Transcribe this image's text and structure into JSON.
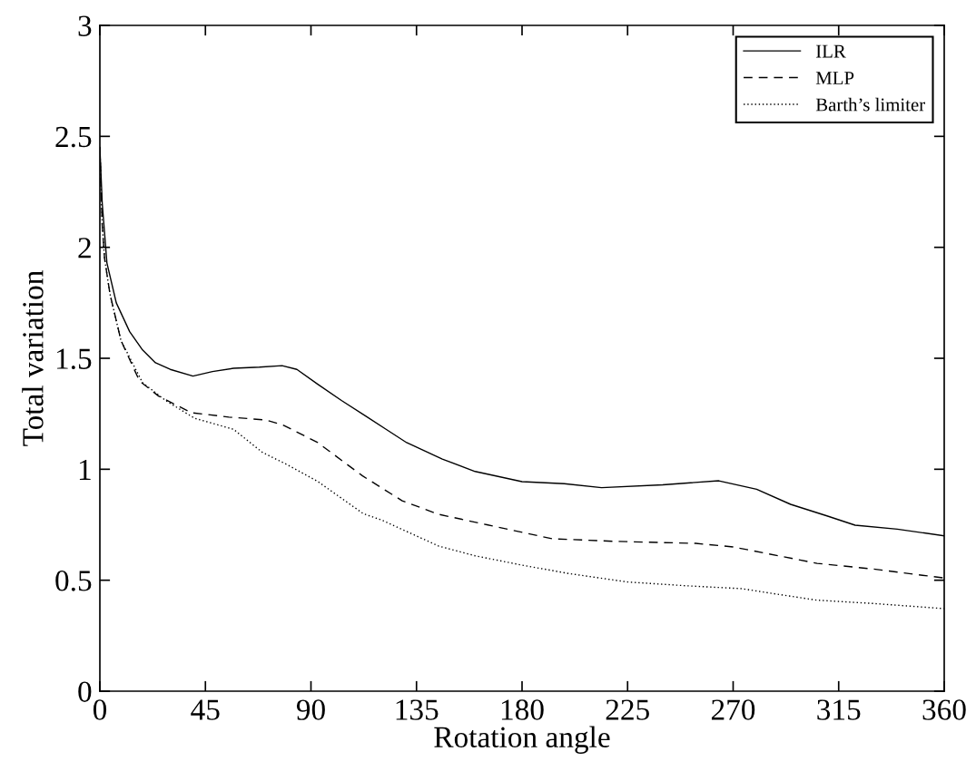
{
  "chart_data": {
    "type": "line",
    "xlabel": "Rotation angle",
    "ylabel": "Total variation",
    "xlim": [
      0,
      360
    ],
    "ylim": [
      0,
      3
    ],
    "xticks": [
      0,
      45,
      90,
      135,
      180,
      225,
      270,
      315,
      360
    ],
    "yticks": [
      0,
      0.5,
      1,
      1.5,
      2,
      2.5,
      3
    ],
    "grid": false,
    "legend": "top right",
    "marker": "none",
    "series": [
      {
        "name": "ILR",
        "color": "#000000",
        "line_style": "solid",
        "x": [
          0,
          1,
          3,
          7,
          12.7,
          18,
          23.7,
          30,
          39.7,
          48,
          57,
          68,
          77.7,
          84,
          92.9,
          103,
          113.6,
          122,
          130.8,
          146,
          160,
          180,
          198,
          213.9,
          240,
          263.9,
          280,
          294.5,
          310,
          322,
          340,
          360
        ],
        "values": [
          2.45,
          2.2,
          1.93,
          1.75,
          1.62,
          1.54,
          1.48,
          1.45,
          1.42,
          1.44,
          1.455,
          1.46,
          1.467,
          1.45,
          1.383,
          1.31,
          1.238,
          1.18,
          1.12,
          1.046,
          0.99,
          0.944,
          0.935,
          0.917,
          0.93,
          0.948,
          0.91,
          0.842,
          0.79,
          0.748,
          0.73,
          0.7
        ]
      },
      {
        "name": "MLP",
        "color": "#000000",
        "line_style": "dashed",
        "x": [
          0,
          1,
          2,
          4.3,
          9,
          16.9,
          25,
          39,
          55,
          70.8,
          78,
          92.9,
          112,
          128.9,
          144.4,
          165,
          192.8,
          220,
          254,
          270,
          305.8,
          330,
          360
        ],
        "values": [
          2.45,
          2.1,
          1.95,
          1.79,
          1.58,
          1.398,
          1.33,
          1.255,
          1.235,
          1.222,
          1.2,
          1.12,
          0.97,
          0.858,
          0.797,
          0.75,
          0.687,
          0.675,
          0.666,
          0.65,
          0.576,
          0.55,
          0.51
        ]
      },
      {
        "name": "Barth’s limiter",
        "color": "#000000",
        "line_style": "dotted",
        "x": [
          0,
          1,
          2,
          4.3,
          9,
          18.2,
          28,
          40.3,
          57,
          69.3,
          80,
          92.9,
          112.3,
          120.4,
          144.4,
          160,
          180,
          200,
          225,
          250,
          273.6,
          290,
          305.8,
          330,
          360
        ],
        "values": [
          2.45,
          2.1,
          1.95,
          1.79,
          1.58,
          1.39,
          1.31,
          1.23,
          1.18,
          1.076,
          1.02,
          0.945,
          0.8,
          0.77,
          0.654,
          0.61,
          0.568,
          0.53,
          0.492,
          0.475,
          0.462,
          0.435,
          0.41,
          0.395,
          0.372
        ]
      }
    ]
  }
}
